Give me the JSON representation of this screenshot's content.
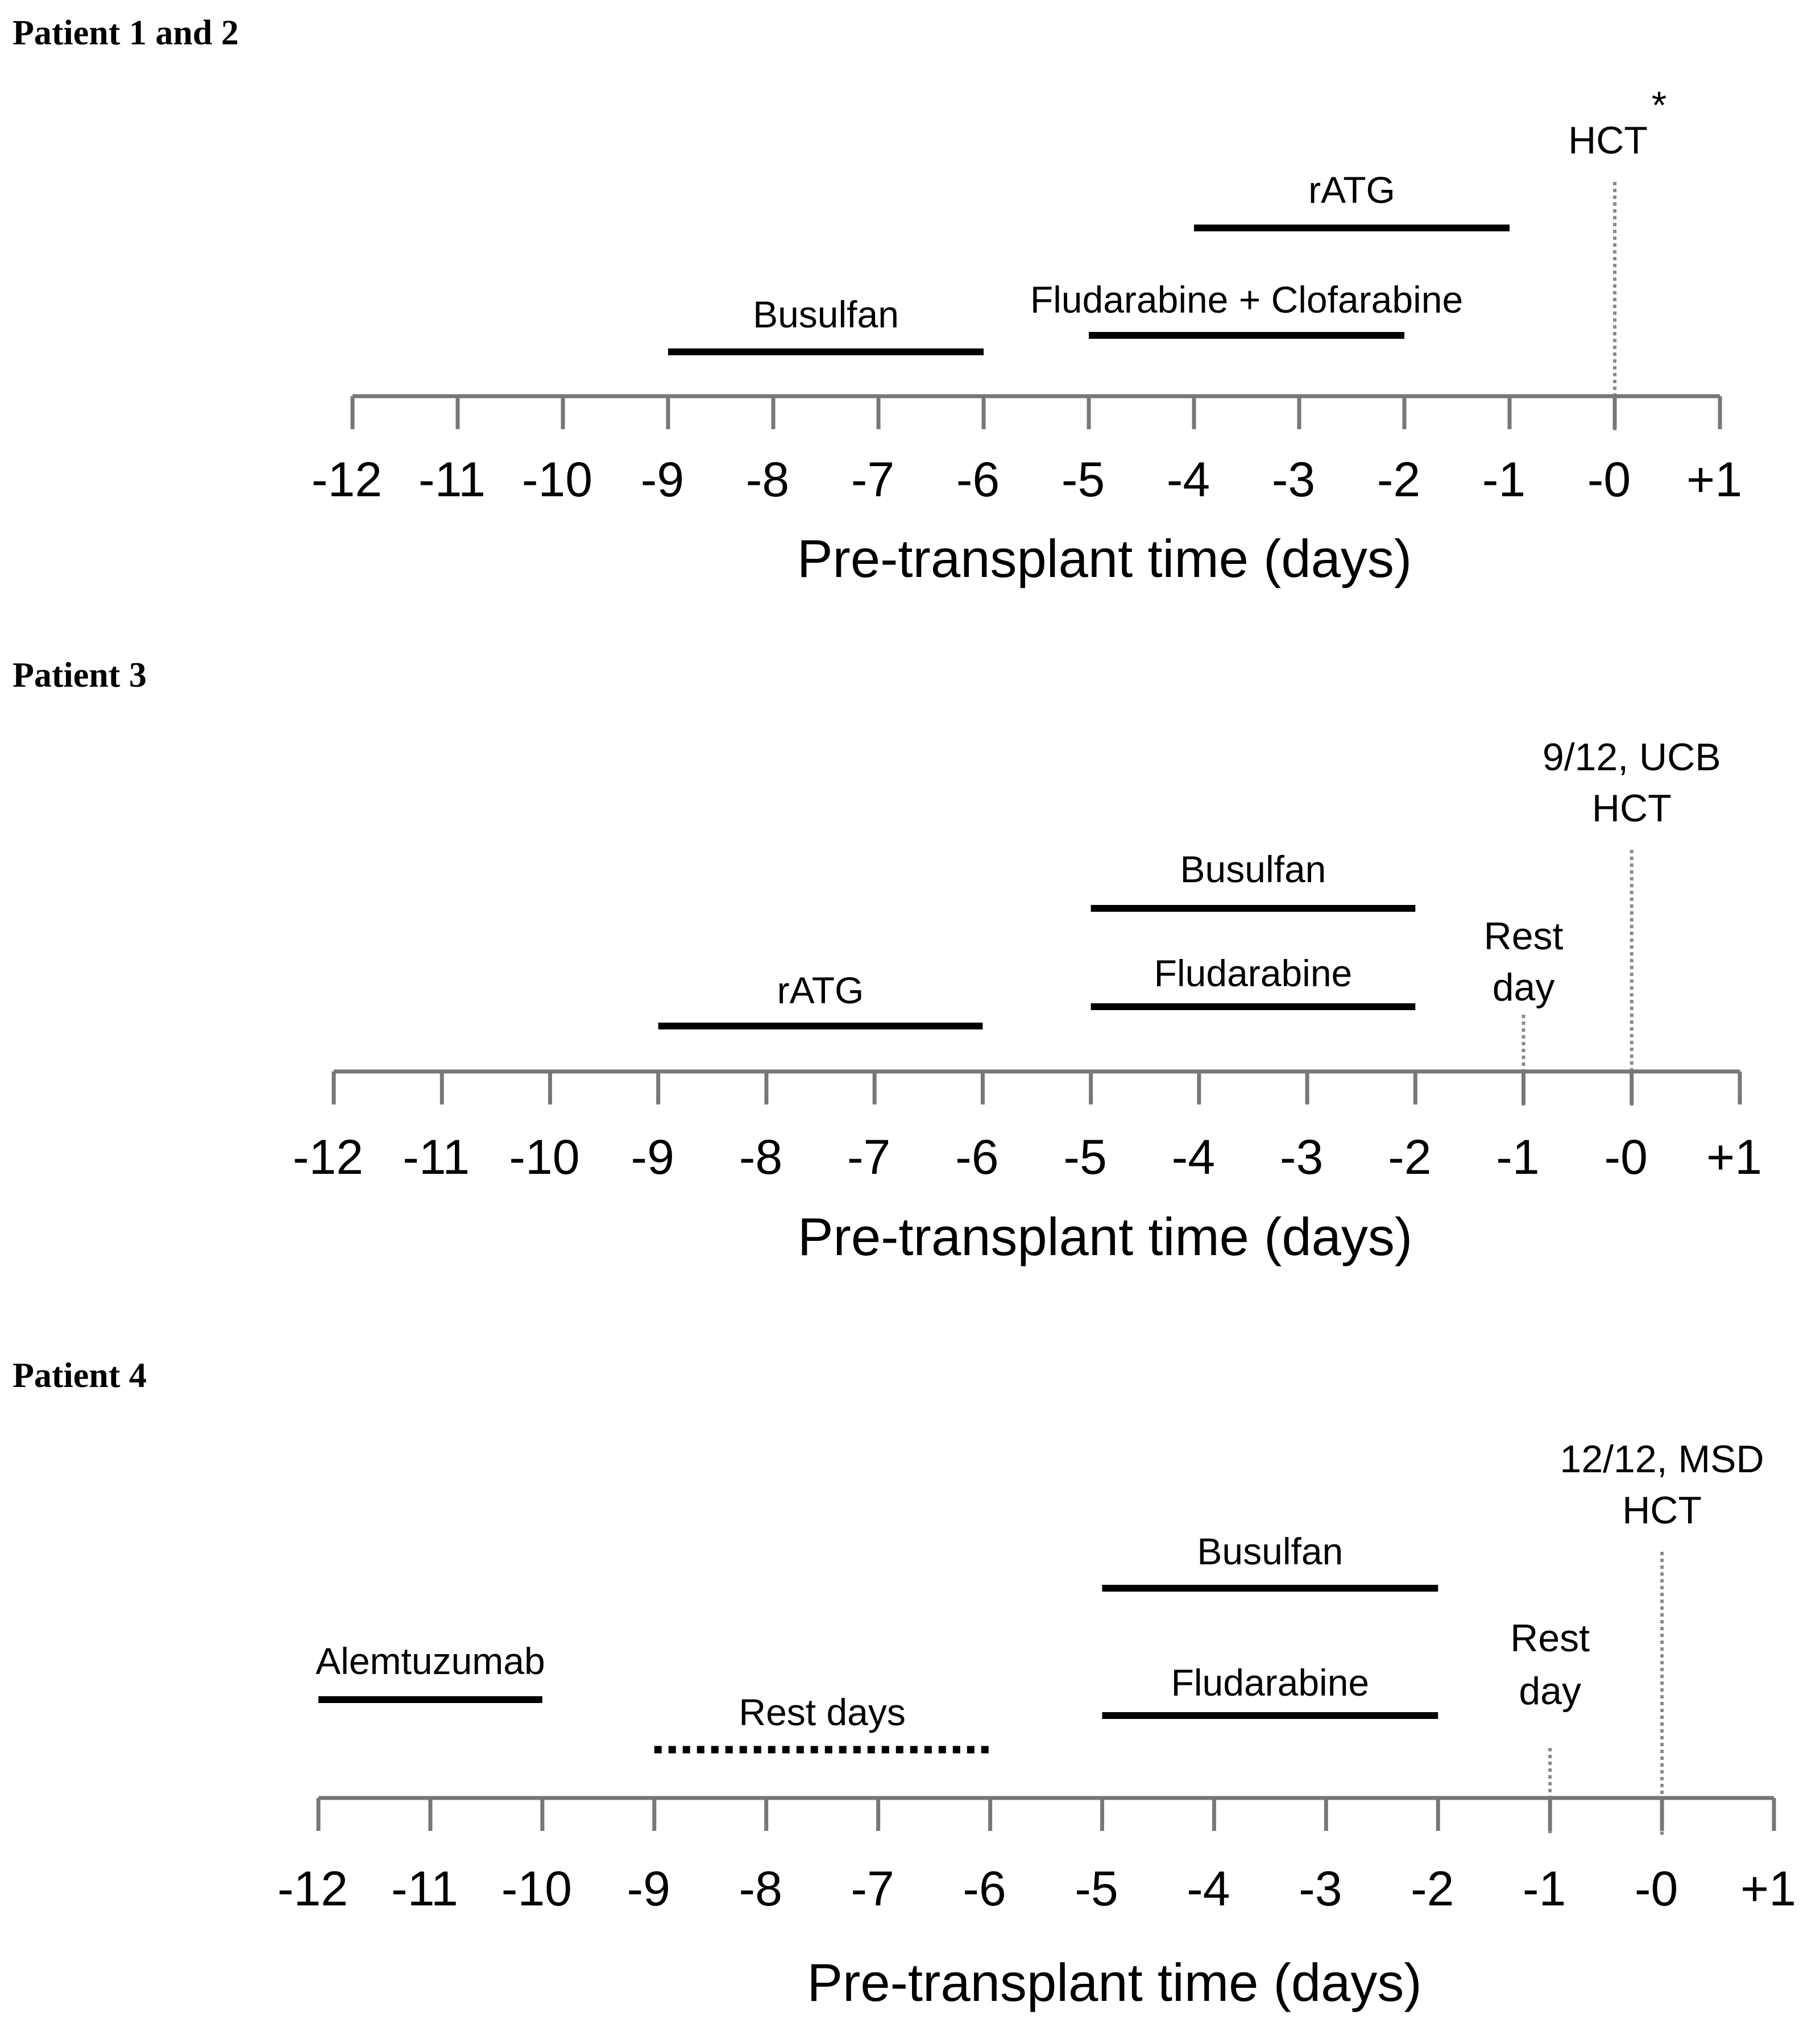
{
  "figure": {
    "panels": [
      {
        "title": "Patient 1 and 2",
        "axis_label": "Pre-transplant time (days)",
        "tick_labels": [
          "-12",
          "-11",
          "-10",
          "-9",
          "-8",
          "-7",
          "-6",
          "-5",
          "-4",
          "-3",
          "-2",
          "-1",
          "-0",
          "+1"
        ],
        "axis_range": [
          -12,
          1
        ],
        "bars": [
          {
            "label": "rATG",
            "start": -4,
            "end": -1,
            "style": "solid"
          },
          {
            "label": "Busulfan",
            "start": -9,
            "end": -6,
            "style": "solid"
          },
          {
            "label": "Fludarabine + Clofarabine",
            "start": -5,
            "end": -2,
            "style": "solid"
          }
        ],
        "markers": [
          {
            "label_lines": [
              "HCT"
            ],
            "superscript": "*",
            "day": 0
          }
        ]
      },
      {
        "title": "Patient 3",
        "axis_label": "Pre-transplant time (days)",
        "tick_labels": [
          "-12",
          "-11",
          "-10",
          "-9",
          "-8",
          "-7",
          "-6",
          "-5",
          "-4",
          "-3",
          "-2",
          "-1",
          "-0",
          "+1"
        ],
        "axis_range": [
          -12,
          1
        ],
        "bars": [
          {
            "label": "Busulfan",
            "start": -5,
            "end": -2,
            "style": "solid"
          },
          {
            "label": "Fludarabine",
            "start": -5,
            "end": -2,
            "style": "solid"
          },
          {
            "label": "rATG",
            "start": -9,
            "end": -6,
            "style": "solid"
          }
        ],
        "markers": [
          {
            "label_lines": [
              "9/12, UCB",
              "HCT"
            ],
            "superscript": "",
            "day": 0
          },
          {
            "label_lines": [
              "Rest",
              "day"
            ],
            "superscript": "",
            "day": -1
          }
        ]
      },
      {
        "title": "Patient 4",
        "axis_label": "Pre-transplant time (days)",
        "tick_labels": [
          "-12",
          "-11",
          "-10",
          "-9",
          "-8",
          "-7",
          "-6",
          "-5",
          "-4",
          "-3",
          "-2",
          "-1",
          "-0",
          "+1"
        ],
        "axis_range": [
          -12,
          1
        ],
        "bars": [
          {
            "label": "Busulfan",
            "start": -5,
            "end": -2,
            "style": "solid"
          },
          {
            "label": "Fludarabine",
            "start": -5,
            "end": -2,
            "style": "solid"
          },
          {
            "label": "Alemtuzumab",
            "start": -12,
            "end": -10,
            "style": "solid"
          },
          {
            "label": "Rest days",
            "start": -9,
            "end": -6,
            "style": "dotted"
          }
        ],
        "markers": [
          {
            "label_lines": [
              "12/12, MSD",
              "HCT"
            ],
            "superscript": "",
            "day": 0
          },
          {
            "label_lines": [
              "Rest",
              "day"
            ],
            "superscript": "",
            "day": -1
          }
        ]
      }
    ]
  },
  "colors": {
    "axis": "#7a7577",
    "bar": "#000000",
    "marker": "#8a8a8a",
    "text": "#000000"
  }
}
